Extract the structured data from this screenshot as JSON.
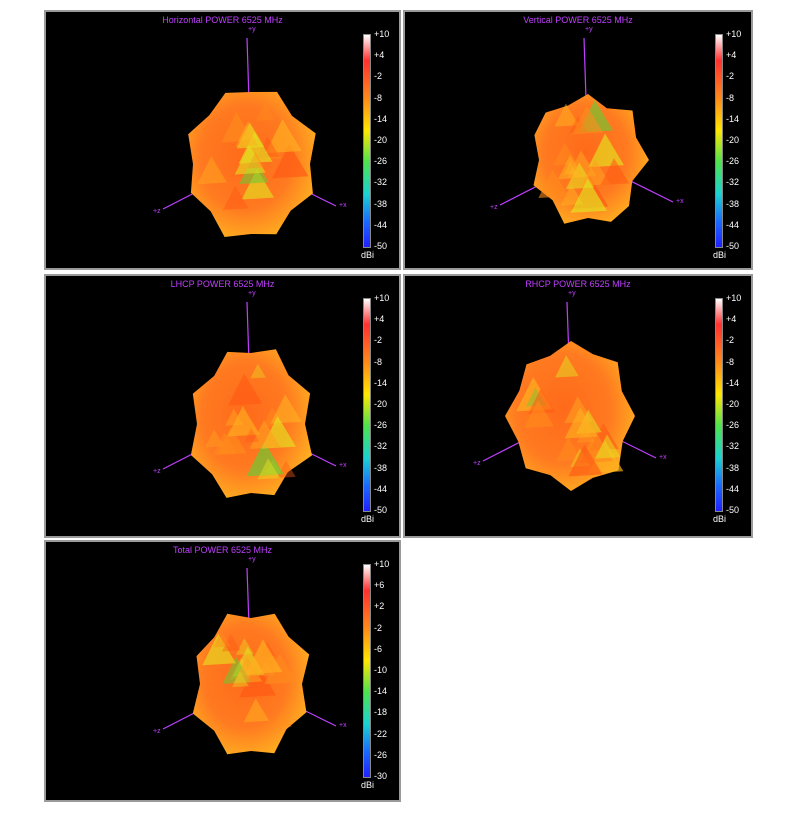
{
  "colors": {
    "background": "#000000",
    "title": "#c040ff",
    "axis": "#c040ff",
    "blob_core": "#ff6a1a",
    "blob_edge": "#ffb020",
    "blob_accent": "#e4e020",
    "blob_green": "#6ec832"
  },
  "chart_data": [
    {
      "type": "other",
      "subtype": "3d-radiation-pattern",
      "title": "Horizontal POWER 6525  MHz",
      "axes": [
        "+y",
        "+x",
        "+z"
      ],
      "colorbar": {
        "unit": "dBi",
        "ticks": [
          "+10",
          "+4",
          "-2",
          "-8",
          "-14",
          "-20",
          "-26",
          "-32",
          "-38",
          "-44",
          "-50"
        ],
        "range": [
          -50,
          10
        ]
      }
    },
    {
      "type": "other",
      "subtype": "3d-radiation-pattern",
      "title": "Vertical POWER 6525  MHz",
      "axes": [
        "+y",
        "+x",
        "+z"
      ],
      "colorbar": {
        "unit": "dBi",
        "ticks": [
          "+10",
          "+4",
          "-2",
          "-8",
          "-14",
          "-20",
          "-26",
          "-32",
          "-38",
          "-44",
          "-50"
        ],
        "range": [
          -50,
          10
        ]
      }
    },
    {
      "type": "other",
      "subtype": "3d-radiation-pattern",
      "title": "LHCP POWER 6525  MHz",
      "axes": [
        "+y",
        "+x",
        "+z"
      ],
      "colorbar": {
        "unit": "dBi",
        "ticks": [
          "+10",
          "+4",
          "-2",
          "-8",
          "-14",
          "-20",
          "-26",
          "-32",
          "-38",
          "-44",
          "-50"
        ],
        "range": [
          -50,
          10
        ]
      }
    },
    {
      "type": "other",
      "subtype": "3d-radiation-pattern",
      "title": "RHCP POWER 6525  MHz",
      "axes": [
        "+y",
        "+x",
        "+z"
      ],
      "colorbar": {
        "unit": "dBi",
        "ticks": [
          "+10",
          "+4",
          "-2",
          "-8",
          "-14",
          "-20",
          "-26",
          "-32",
          "-38",
          "-44",
          "-50"
        ],
        "range": [
          -50,
          10
        ]
      }
    },
    {
      "type": "other",
      "subtype": "3d-radiation-pattern",
      "title": "Total POWER 6525  MHz",
      "axes": [
        "+y",
        "+x",
        "+z"
      ],
      "colorbar": {
        "unit": "dBi",
        "ticks": [
          "+10",
          "+6",
          "+2",
          "-2",
          "-6",
          "-10",
          "-14",
          "-18",
          "-22",
          "-26",
          "-30"
        ],
        "range": [
          -30,
          10
        ]
      }
    }
  ]
}
